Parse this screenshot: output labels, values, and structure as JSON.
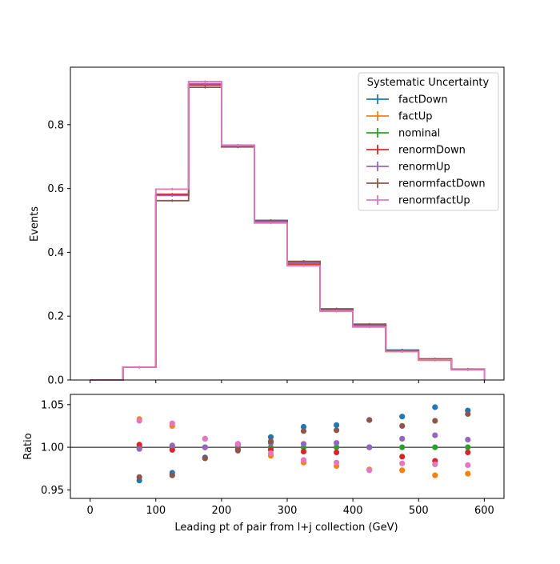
{
  "chart_data": [
    {
      "type": "line",
      "drawstyle": "steps",
      "ylabel": "Events",
      "xlim": [
        -30,
        630
      ],
      "ylim": [
        0,
        0.98
      ],
      "xticks": [
        0,
        100,
        200,
        300,
        400,
        500,
        600
      ],
      "yticks": [
        0.0,
        0.2,
        0.4,
        0.6,
        0.8
      ],
      "ytick_labels": [
        "0.0",
        "0.2",
        "0.4",
        "0.6",
        "0.8"
      ],
      "bin_edges": [
        0,
        50,
        100,
        150,
        200,
        250,
        300,
        350,
        400,
        450,
        500,
        550,
        600
      ],
      "legend": {
        "title": "Systematic Uncertainty",
        "location": "upper right"
      },
      "series": [
        {
          "name": "factDown",
          "color": "#1f77b4",
          "values": [
            0.0,
            0.04,
            0.58,
            0.926,
            0.735,
            0.5,
            0.37,
            0.222,
            0.174,
            0.094,
            0.066,
            0.034
          ]
        },
        {
          "name": "factUp",
          "color": "#ff7f0e",
          "values": [
            0.0,
            0.04,
            0.598,
            0.935,
            0.733,
            0.492,
            0.36,
            0.215,
            0.167,
            0.089,
            0.062,
            0.032
          ]
        },
        {
          "name": "nominal",
          "color": "#2ca02c",
          "values": [
            0.0,
            0.04,
            0.58,
            0.926,
            0.733,
            0.496,
            0.365,
            0.22,
            0.17,
            0.091,
            0.064,
            0.033
          ]
        },
        {
          "name": "renormDown",
          "color": "#d62728",
          "values": [
            0.0,
            0.04,
            0.582,
            0.924,
            0.731,
            0.497,
            0.364,
            0.219,
            0.17,
            0.09,
            0.063,
            0.033
          ]
        },
        {
          "name": "renormUp",
          "color": "#9467bd",
          "values": [
            0.0,
            0.04,
            0.578,
            0.928,
            0.736,
            0.497,
            0.366,
            0.221,
            0.17,
            0.092,
            0.065,
            0.033
          ]
        },
        {
          "name": "renormfactDown",
          "color": "#8c564b",
          "values": [
            0.0,
            0.04,
            0.562,
            0.917,
            0.73,
            0.5,
            0.372,
            0.223,
            0.175,
            0.093,
            0.066,
            0.034
          ]
        },
        {
          "name": "renormfactUp",
          "color": "#e377c2",
          "values": [
            0.0,
            0.04,
            0.598,
            0.935,
            0.735,
            0.492,
            0.358,
            0.216,
            0.166,
            0.089,
            0.063,
            0.032
          ]
        }
      ]
    },
    {
      "type": "scatter",
      "xlabel": "Leading pt of pair from l+j collection (GeV)",
      "ylabel": "Ratio",
      "xlim": [
        -30,
        630
      ],
      "ylim": [
        0.94,
        1.062
      ],
      "xticks": [
        0,
        100,
        200,
        300,
        400,
        500,
        600
      ],
      "yticks": [
        0.95,
        1.0,
        1.05
      ],
      "ytick_labels": [
        "0.95",
        "1.00",
        "1.05"
      ],
      "reference_line": 1.0,
      "x": [
        75,
        125,
        175,
        225,
        275,
        325,
        375,
        425,
        475,
        525,
        575
      ],
      "series": [
        {
          "name": "factDown",
          "color": "#1f77b4",
          "values": [
            0.961,
            0.97,
            0.988,
            1.004,
            1.012,
            1.024,
            1.026,
            1.032,
            1.036,
            1.047,
            1.043
          ]
        },
        {
          "name": "factUp",
          "color": "#ff7f0e",
          "values": [
            1.033,
            1.025,
            1.01,
            1.002,
            0.99,
            0.982,
            0.978,
            0.974,
            0.973,
            0.967,
            0.969
          ]
        },
        {
          "name": "nominal",
          "color": "#2ca02c",
          "values": [
            1.0,
            1.0,
            1.0,
            1.0,
            1.0,
            1.0,
            1.0,
            1.0,
            1.0,
            1.0,
            1.0
          ]
        },
        {
          "name": "renormDown",
          "color": "#d62728",
          "values": [
            1.003,
            0.997,
            1.0,
            0.997,
            0.997,
            0.995,
            0.994,
            1.0,
            0.989,
            0.984,
            0.994
          ]
        },
        {
          "name": "renormUp",
          "color": "#9467bd",
          "values": [
            0.998,
            1.002,
            1.0,
            1.003,
            1.005,
            1.004,
            1.005,
            1.0,
            1.01,
            1.014,
            1.009
          ]
        },
        {
          "name": "renormfactDown",
          "color": "#8c564b",
          "values": [
            0.965,
            0.967,
            0.987,
            0.996,
            1.007,
            1.019,
            1.02,
            1.032,
            1.025,
            1.031,
            1.039
          ]
        },
        {
          "name": "renormfactUp",
          "color": "#e377c2",
          "values": [
            1.031,
            1.028,
            1.01,
            1.004,
            0.993,
            0.985,
            0.982,
            0.973,
            0.981,
            0.98,
            0.979
          ]
        }
      ]
    }
  ]
}
